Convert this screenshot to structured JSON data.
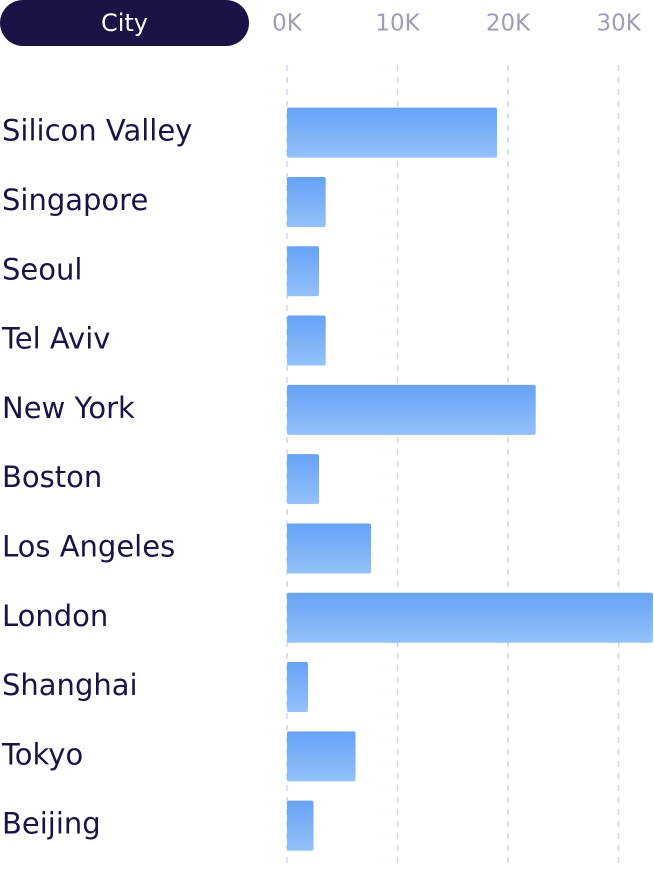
{
  "chart_data": {
    "type": "bar",
    "orientation": "horizontal",
    "y_axis_label": "City",
    "categories": [
      "Silicon Valley",
      "Singapore",
      "Seoul",
      "Tel Aviv",
      "New York",
      "Boston",
      "Los Angeles",
      "London",
      "Shanghai",
      "Tokyo",
      "Beijing"
    ],
    "values": [
      19000,
      3500,
      2900,
      3500,
      22500,
      2900,
      7600,
      33100,
      1900,
      6200,
      2400
    ],
    "color": "#6ea8f8",
    "xlim": [
      0,
      33200
    ],
    "xticks": [
      {
        "value": 0,
        "label": "0K"
      },
      {
        "value": 10000,
        "label": "10K"
      },
      {
        "value": 20000,
        "label": "20K"
      },
      {
        "value": 30000,
        "label": "30K"
      }
    ],
    "grid": true
  }
}
